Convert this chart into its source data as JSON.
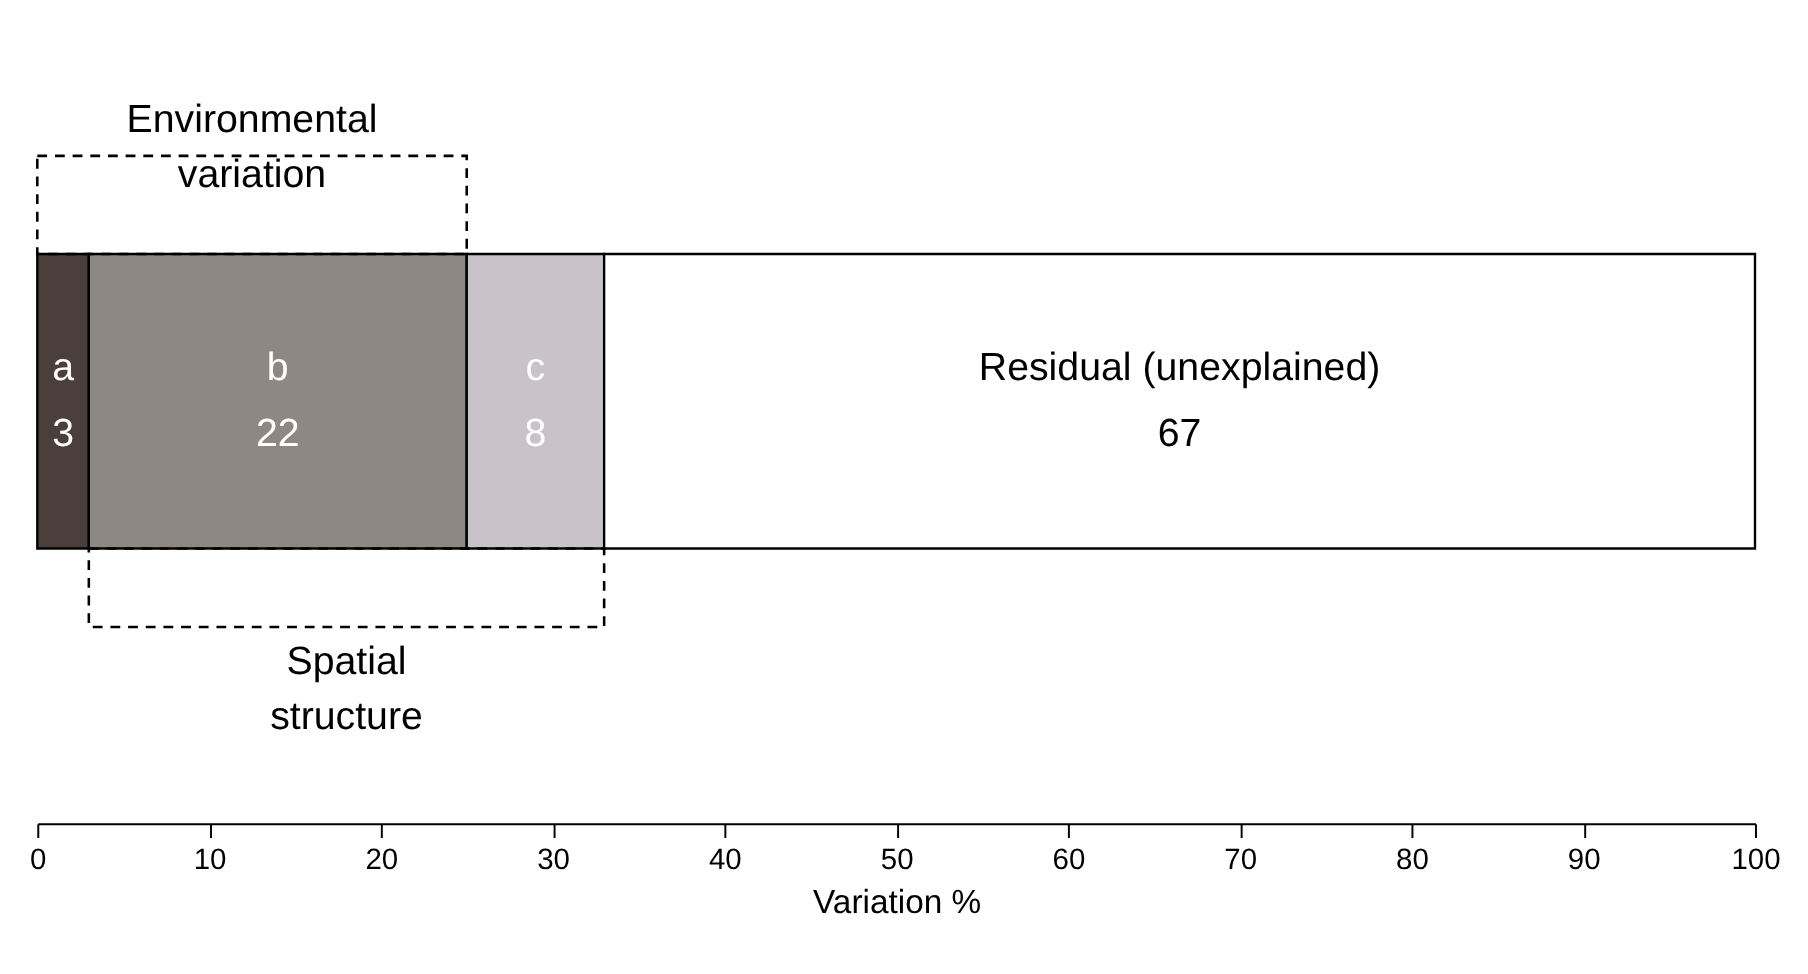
{
  "chart_data": {
    "type": "bar",
    "orientation": "horizontal",
    "stacked": true,
    "categories": [
      null
    ],
    "series": [
      {
        "name": "a",
        "color": "#4a3f3a",
        "values": [
          3
        ]
      },
      {
        "name": "b",
        "color": "#8f8782",
        "values": [
          22
        ]
      },
      {
        "name": "c",
        "color": "#c9c3c9",
        "values": [
          8
        ]
      },
      {
        "name": "Residual (unexplained)",
        "color": "#ffffff",
        "values": [
          67
        ]
      }
    ],
    "data_labels": true,
    "xlabel": "Variation %",
    "xlim": [
      0,
      100
    ],
    "xticks": [
      0,
      10,
      20,
      30,
      40,
      50,
      60,
      70,
      80,
      90,
      100
    ],
    "grid": false,
    "annotations": [
      "Environmental variation",
      "Spatial structure"
    ]
  }
}
